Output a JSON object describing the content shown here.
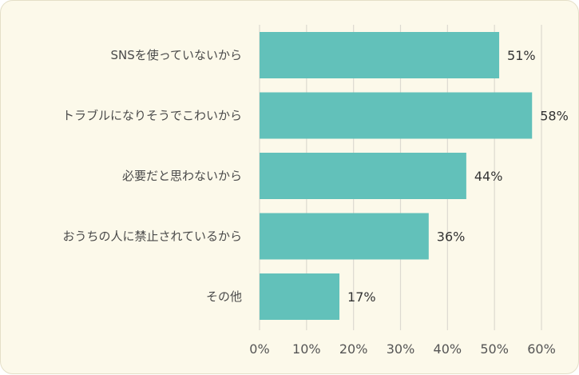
{
  "chart_data": {
    "type": "bar",
    "orientation": "horizontal",
    "categories": [
      "SNSを使っていないから",
      "トラブルになりそうでこわいから",
      "必要だと思わないから",
      "おうちの人に禁止されているから",
      "その他"
    ],
    "values": [
      51,
      58,
      44,
      36,
      17
    ],
    "value_labels": [
      "51%",
      "58%",
      "44%",
      "36%",
      "17%"
    ],
    "xlim": [
      0,
      60
    ],
    "ticks": [
      "0%",
      "10%",
      "20%",
      "30%",
      "40%",
      "50%",
      "60%"
    ],
    "tick_values": [
      0,
      10,
      20,
      30,
      40,
      50,
      60
    ],
    "grid": true,
    "bar_color": "#62c1ba",
    "background_color": "#fcf9ea"
  }
}
